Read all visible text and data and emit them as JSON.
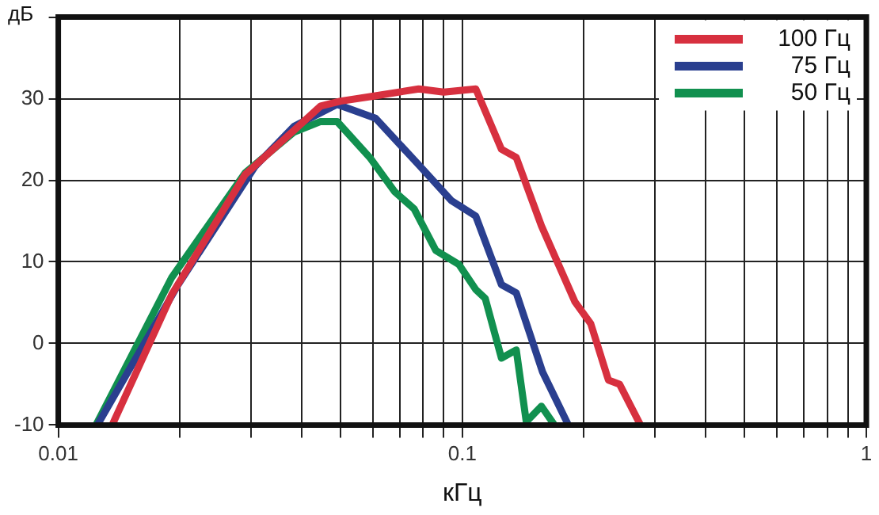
{
  "chart_data": {
    "type": "line",
    "xlabel": "кГц",
    "ylabel": "дБ",
    "log": "x",
    "grid": true,
    "legend": "top right",
    "marker": "none",
    "line_style": "solid",
    "xlim": [
      0.01,
      1
    ],
    "xticks": [
      0.01,
      {
        "value": 0.02,
        "label": null
      },
      {
        "value": 0.03,
        "label": null
      },
      {
        "value": 0.04,
        "label": null
      },
      {
        "value": 0.05,
        "label": null
      },
      {
        "value": 0.06,
        "label": null
      },
      {
        "value": 0.07,
        "label": null
      },
      {
        "value": 0.08,
        "label": null
      },
      {
        "value": 0.09,
        "label": null
      },
      0.1,
      {
        "value": 0.2,
        "label": null
      },
      {
        "value": 0.3,
        "label": null
      },
      {
        "value": 0.4,
        "label": null
      },
      {
        "value": 0.5,
        "label": null
      },
      {
        "value": 0.6,
        "label": null
      },
      {
        "value": 0.7,
        "label": null
      },
      {
        "value": 0.8,
        "label": null
      },
      {
        "value": 0.9,
        "label": null
      },
      1
    ],
    "ylim": [
      -10,
      40
    ],
    "yticks": [
      -10,
      0,
      10,
      20,
      30,
      {
        "value": 40,
        "label": null
      }
    ],
    "series": [
      {
        "name": "100 Гц",
        "color": "#d7303f",
        "x": [
          0.0136,
          0.0191,
          0.029,
          0.0383,
          0.0446,
          0.05,
          0.06,
          0.078,
          0.09,
          0.108,
          0.125,
          0.136,
          0.157,
          0.19,
          0.208,
          0.23,
          0.245,
          0.276
        ],
        "values": [
          -10,
          6,
          20.7,
          26.1,
          29.1,
          29.7,
          30.3,
          31.2,
          30.8,
          31.2,
          23.8,
          22.8,
          14.4,
          5.1,
          2.4,
          -4.5,
          -5,
          -10
        ]
      },
      {
        "name": "75 Гц",
        "color": "#2a3f8f",
        "x": [
          0.0125,
          0.0198,
          0.0307,
          0.0383,
          0.049,
          0.061,
          0.078,
          0.094,
          0.108,
          0.125,
          0.136,
          0.158,
          0.183
        ],
        "values": [
          -10,
          7.2,
          21.7,
          26.6,
          29.3,
          27.6,
          21.9,
          17.5,
          15.6,
          7.2,
          6.2,
          -3.5,
          -10
        ]
      },
      {
        "name": "50 Гц",
        "color": "#11904f",
        "x": [
          0.0124,
          0.0191,
          0.029,
          0.0383,
          0.0446,
          0.049,
          0.059,
          0.068,
          0.076,
          0.086,
          0.098,
          0.108,
          0.114,
          0.125,
          0.136,
          0.144,
          0.157,
          0.169
        ],
        "values": [
          -10,
          8.1,
          20.9,
          25.9,
          27.2,
          27.2,
          22.8,
          18.6,
          16.5,
          11.4,
          9.7,
          6.6,
          5.5,
          -1.8,
          -0.8,
          -9.6,
          -7.7,
          -10
        ]
      }
    ]
  }
}
